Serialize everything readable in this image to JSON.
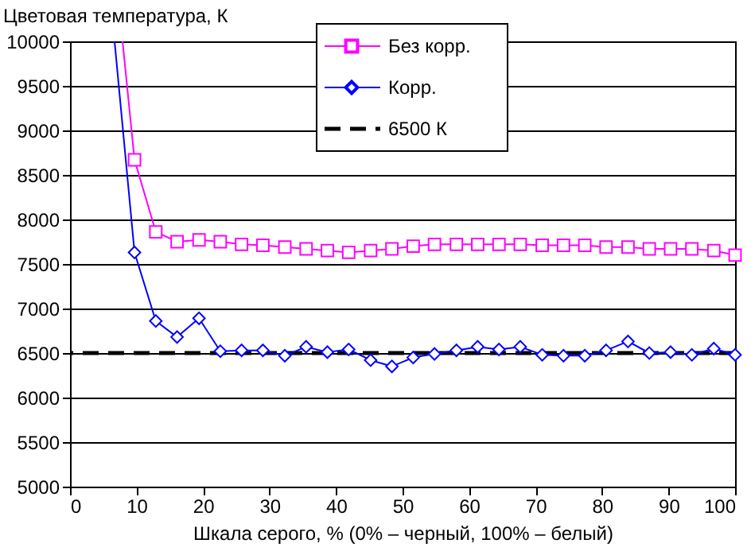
{
  "chart_data": {
    "type": "line",
    "title": "Цветовая температура, К",
    "xlabel": "Шкала серого, % (0% – черный, 100% – белый)",
    "xlim": [
      0,
      100
    ],
    "xticks": [
      0,
      10,
      20,
      30,
      40,
      50,
      60,
      70,
      80,
      90,
      100
    ],
    "ylim": [
      5000,
      10000
    ],
    "yticks": [
      5000,
      5500,
      6000,
      6500,
      7000,
      7500,
      8000,
      8500,
      9000,
      9500,
      10000
    ],
    "grid": "y",
    "legend": "top right",
    "series": [
      {
        "name": "Без корр.",
        "color": "#ff00ff",
        "marker": "square",
        "x": [
          7.9,
          9.7,
          12.9,
          16.1,
          19.4,
          22.6,
          25.8,
          29.0,
          32.3,
          35.5,
          38.7,
          41.9,
          45.2,
          48.4,
          51.6,
          54.8,
          58.1,
          61.3,
          64.5,
          67.7,
          71.0,
          74.2,
          77.4,
          80.6,
          83.9,
          87.1,
          90.3,
          93.5,
          96.8,
          100
        ],
        "values": [
          10000,
          8670,
          7860,
          7750,
          7770,
          7750,
          7720,
          7710,
          7690,
          7670,
          7650,
          7630,
          7650,
          7670,
          7700,
          7720,
          7720,
          7720,
          7720,
          7720,
          7710,
          7710,
          7710,
          7690,
          7690,
          7670,
          7670,
          7670,
          7650,
          7600
        ]
      },
      {
        "name": "Корр.",
        "color": "#0000ff",
        "marker": "diamond",
        "x": [
          6.7,
          9.7,
          12.9,
          16.1,
          19.4,
          22.6,
          25.8,
          29.0,
          32.3,
          35.5,
          38.7,
          41.9,
          45.2,
          48.4,
          51.6,
          54.8,
          58.1,
          61.3,
          64.5,
          67.7,
          71.0,
          74.2,
          77.4,
          80.6,
          83.9,
          87.1,
          90.3,
          93.5,
          96.8,
          100
        ],
        "values": [
          10000,
          7630,
          6860,
          6680,
          6890,
          6520,
          6530,
          6530,
          6470,
          6570,
          6510,
          6540,
          6420,
          6350,
          6450,
          6490,
          6530,
          6570,
          6540,
          6570,
          6480,
          6470,
          6470,
          6530,
          6630,
          6500,
          6510,
          6480,
          6550,
          6480
        ]
      }
    ],
    "ref_lines": [
      {
        "axis": "y",
        "value": 6500,
        "label": "6500 К",
        "color": "#000000",
        "line_style": "dashed"
      }
    ]
  }
}
